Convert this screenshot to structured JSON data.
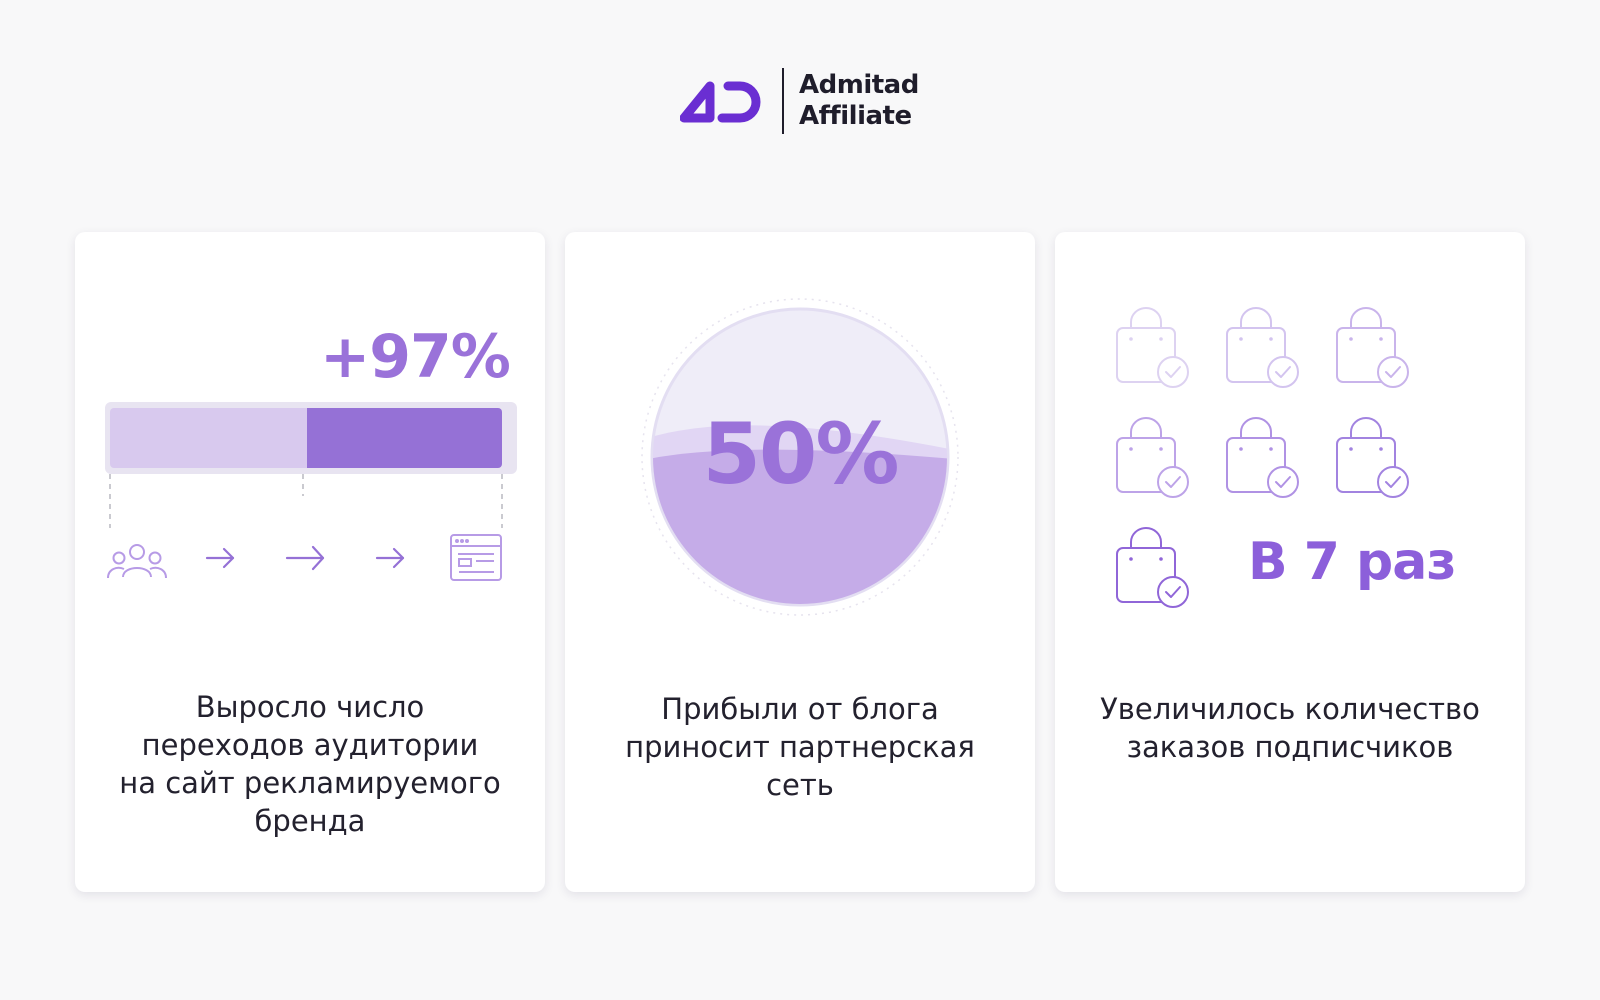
{
  "header": {
    "brand_line1": "Admitad",
    "brand_line2": "Affiliate",
    "logo_icon": "admitad-ad-logo",
    "accent_color": "#6a2ed2"
  },
  "cards": [
    {
      "value": "+97%",
      "caption": "Выросло число\nпереходов аудитории\nна сайт рекламируемого\nбренда",
      "growth_share": 0.5,
      "icons": [
        "audience-icon",
        "arrow-right-icon",
        "arrow-right-icon",
        "arrow-right-icon",
        "website-icon"
      ]
    },
    {
      "value": "50%",
      "caption": "Прибыли от блога\nприносит партнерская\nсеть",
      "fill_level": 0.5
    },
    {
      "value": "В 7 раз",
      "caption": "Увеличилось количество\nзаказов подписчиков",
      "bag_icon": "shopping-bag-check-icon",
      "bag_count": 7
    }
  ],
  "colors": {
    "purple_strong": "#9571d6",
    "purple_light": "#d8c9ee",
    "text": "#23212e"
  }
}
